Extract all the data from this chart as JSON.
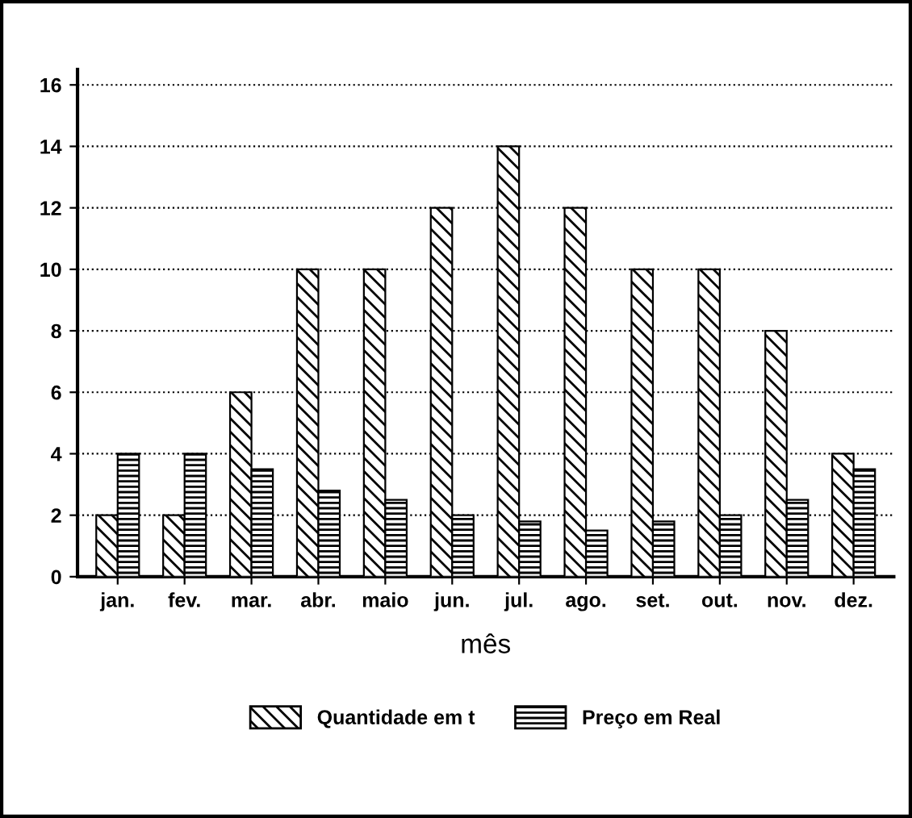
{
  "chart_data": {
    "type": "bar",
    "xlabel": "mês",
    "categories": [
      "jan.",
      "fev.",
      "mar.",
      "abr.",
      "maio",
      "jun.",
      "jul.",
      "ago.",
      "set.",
      "out.",
      "nov.",
      "dez."
    ],
    "series": [
      {
        "name": "Quantidade em t",
        "color": "#000000",
        "values": [
          2,
          2,
          6,
          10,
          10,
          12,
          14,
          12,
          10,
          10,
          8,
          4
        ]
      },
      {
        "name": "Preço em Real",
        "color": "#000000",
        "values": [
          4,
          4,
          3.5,
          2.8,
          2.5,
          2,
          1.8,
          1.5,
          1.8,
          2,
          2.5,
          3.5
        ]
      }
    ],
    "ylim": [
      0,
      16.5
    ],
    "yticks": [
      0,
      2,
      4,
      6,
      8,
      10,
      12,
      14,
      16
    ],
    "grid": "y",
    "legend": "bottom"
  }
}
